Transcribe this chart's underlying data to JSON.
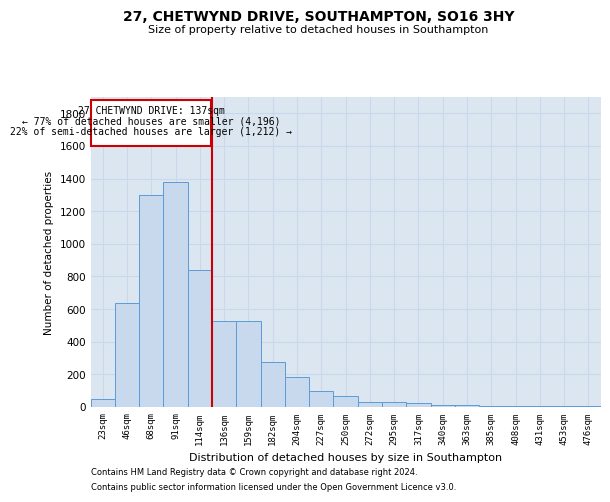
{
  "title": "27, CHETWYND DRIVE, SOUTHAMPTON, SO16 3HY",
  "subtitle": "Size of property relative to detached houses in Southampton",
  "xlabel": "Distribution of detached houses by size in Southampton",
  "ylabel": "Number of detached properties",
  "footer_line1": "Contains HM Land Registry data © Crown copyright and database right 2024.",
  "footer_line2": "Contains public sector information licensed under the Open Government Licence v3.0.",
  "annotation_title": "27 CHETWYND DRIVE: 137sqm",
  "annotation_line1": "← 77% of detached houses are smaller (4,196)",
  "annotation_line2": "22% of semi-detached houses are larger (1,212) →",
  "bar_color": "#c8d9ed",
  "bar_edge_color": "#5b9bd5",
  "vline_color": "#cc0000",
  "annotation_box_color": "#cc0000",
  "grid_color": "#c8d9ed",
  "background_color": "#dce6f1",
  "categories": [
    "23sqm",
    "46sqm",
    "68sqm",
    "91sqm",
    "114sqm",
    "136sqm",
    "159sqm",
    "182sqm",
    "204sqm",
    "227sqm",
    "250sqm",
    "272sqm",
    "295sqm",
    "317sqm",
    "340sqm",
    "363sqm",
    "385sqm",
    "408sqm",
    "431sqm",
    "453sqm",
    "476sqm"
  ],
  "values": [
    50,
    640,
    1300,
    1380,
    840,
    530,
    530,
    275,
    185,
    100,
    65,
    30,
    30,
    25,
    15,
    10,
    8,
    5,
    5,
    5,
    5
  ],
  "vline_index": 5,
  "ylim": [
    0,
    1900
  ],
  "yticks": [
    0,
    200,
    400,
    600,
    800,
    1000,
    1200,
    1400,
    1600,
    1800
  ]
}
